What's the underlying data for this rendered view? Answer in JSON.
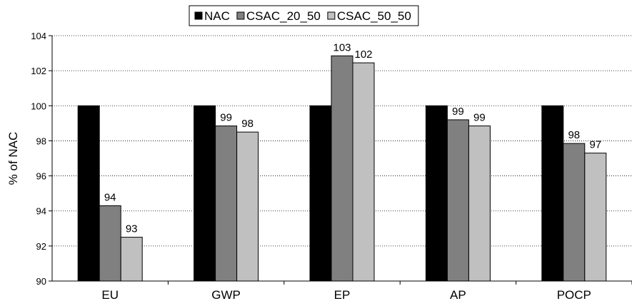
{
  "chart_data": {
    "type": "bar",
    "title": "",
    "xlabel": "",
    "ylabel": "% of NAC",
    "ylim": [
      90,
      104
    ],
    "yticks": [
      90,
      92,
      94,
      96,
      98,
      100,
      102,
      104
    ],
    "grid": "horizontal dotted",
    "legend_position": "top",
    "categories": [
      "EU",
      "GWP",
      "EP",
      "AP",
      "POCP"
    ],
    "series": [
      {
        "name": "NAC",
        "color": "#000000",
        "values": [
          100,
          100,
          100,
          100,
          100
        ],
        "labels": [
          "",
          "",
          "",
          "",
          ""
        ]
      },
      {
        "name": "CSAC_20_50",
        "color": "#808080",
        "values": [
          94.3,
          98.85,
          102.85,
          99.2,
          97.85
        ],
        "labels": [
          "94",
          "99",
          "103",
          "99",
          "98"
        ]
      },
      {
        "name": "CSAC_50_50",
        "color": "#c0c0c0",
        "values": [
          92.5,
          98.5,
          102.45,
          98.85,
          97.3
        ],
        "labels": [
          "93",
          "98",
          "102",
          "99",
          "97"
        ]
      }
    ]
  }
}
